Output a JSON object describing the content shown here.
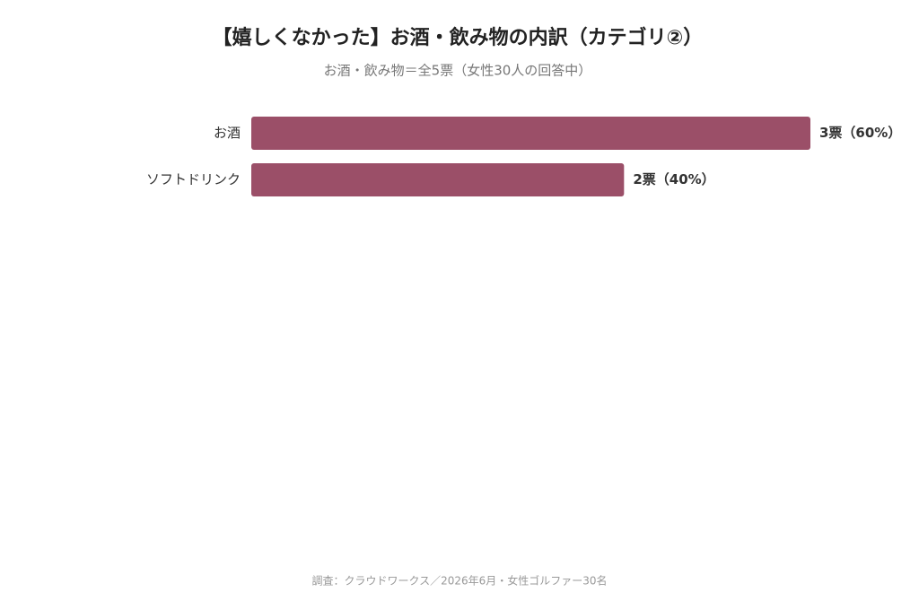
{
  "chart_data": {
    "type": "bar",
    "orientation": "horizontal",
    "title": "【嬉しくなかった】お酒・飲み物の内訳（カテゴリ②）",
    "subtitle": "お酒・飲み物＝全5票（女性30人の回答中）",
    "categories": [
      "お酒",
      "ソフトドリンク"
    ],
    "values": [
      3,
      2
    ],
    "value_labels": [
      "3票（60%）",
      "2票（40%）"
    ],
    "color": "#9b4f68",
    "source": "調査：クラウドワークス／2026年6月・女性ゴルファー30名"
  }
}
